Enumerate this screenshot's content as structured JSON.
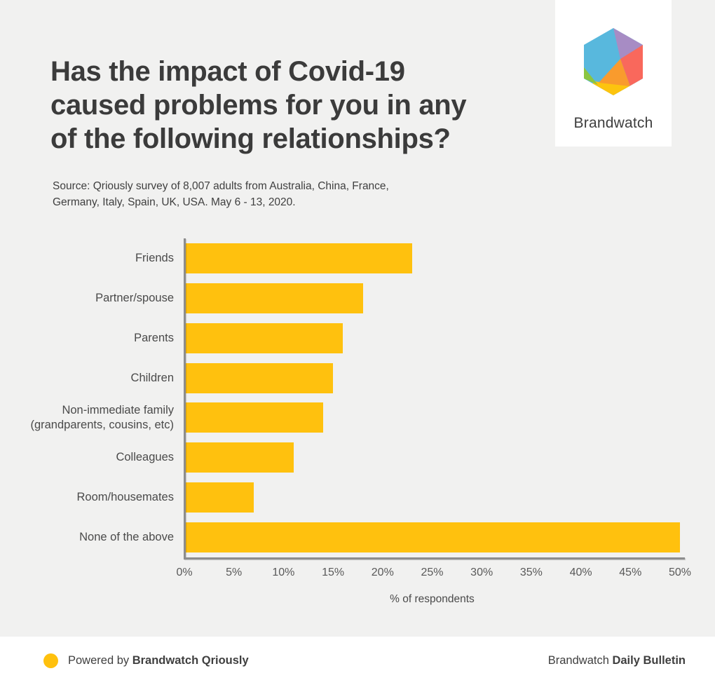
{
  "colors": {
    "background": "#f1f1f0",
    "panel": "#ffffff",
    "bar": "#ffc10e",
    "axis": "#8d8d8d",
    "logo_blue": "#58b8dd",
    "logo_purple": "#a78cc4",
    "logo_red": "#f9685c",
    "logo_orange": "#f99b2d",
    "logo_yellow": "#fdc40e",
    "logo_green": "#8bc541"
  },
  "header": {
    "title_lines": [
      "Has the impact of Covid-19",
      "caused problems for you in any",
      "of the following relationships?"
    ],
    "source_lines": [
      "Source: Qriously survey of 8,007 adults from Australia, China, France,",
      "Germany, Italy, Spain, UK, USA. May 6 - 13, 2020."
    ],
    "logo": {
      "label": "Brandwatch",
      "icon": "brandwatch-hexagon-icon"
    }
  },
  "chart_data": {
    "type": "bar",
    "orientation": "horizontal",
    "categories": [
      "Friends",
      "Partner/spouse",
      "Parents",
      "Children",
      "Non-immediate family (grandparents, cousins, etc)",
      "Colleagues",
      "Room/housemates",
      "None of the above"
    ],
    "values": [
      23,
      18,
      16,
      15,
      14,
      11,
      7,
      50
    ],
    "value_unit": "%",
    "title": "Has the impact of Covid-19 caused problems for you in any of the following relationships?",
    "xlabel": "% of respondents",
    "ylabel": "",
    "xlim": [
      0,
      50
    ],
    "xticks": [
      "0%",
      "5%",
      "10%",
      "15%",
      "20%",
      "25%",
      "30%",
      "35%",
      "40%",
      "45%",
      "50%"
    ],
    "grid": false,
    "legend": false,
    "bar_color": "#ffc10e"
  },
  "footer": {
    "powered_by_prefix": "Powered by ",
    "powered_by_brand": "Brandwatch Qriously",
    "bulletin_prefix": "Brandwatch ",
    "bulletin_bold": "Daily Bulletin"
  }
}
